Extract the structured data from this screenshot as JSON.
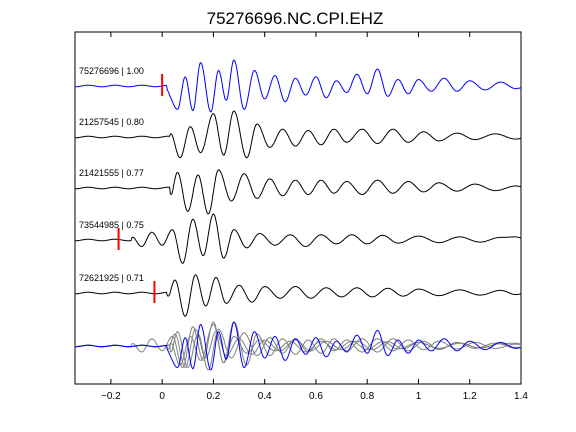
{
  "chart_data": {
    "type": "line",
    "title": "75276696.NC.CPI.EHZ",
    "xlabel": "",
    "ylabel": "",
    "xlim": [
      -0.34,
      1.4
    ],
    "x_ticks": [
      -0.2,
      0,
      0.2,
      0.4,
      0.6,
      0.8,
      1,
      1.2,
      1.4
    ],
    "x_tick_labels": [
      "−0.2",
      "0",
      "0.2",
      "0.4",
      "0.6",
      "0.8",
      "1",
      "1.2",
      "1.4"
    ],
    "grid": false,
    "colors": {
      "reference": "#0000ff",
      "trace": "#000000",
      "overlay": "#808080",
      "pick": "#ff0000"
    },
    "series": [
      {
        "label": "75276696 | 1.00",
        "event_id": "75276696",
        "correlation": 1.0,
        "color": "#0000ff",
        "pick_time": 0.0,
        "label_time": -0.34,
        "peaks": [
          [
            0.02,
            -0.3
          ],
          [
            0.06,
            -0.9
          ],
          [
            0.09,
            0.35
          ],
          [
            0.12,
            -0.95
          ],
          [
            0.15,
            0.9
          ],
          [
            0.19,
            -1.0
          ],
          [
            0.22,
            0.6
          ],
          [
            0.25,
            -0.55
          ],
          [
            0.28,
            1.0
          ],
          [
            0.32,
            -0.9
          ],
          [
            0.36,
            0.6
          ],
          [
            0.4,
            -0.5
          ],
          [
            0.44,
            0.4
          ],
          [
            0.48,
            -0.6
          ],
          [
            0.52,
            0.3
          ],
          [
            0.56,
            -0.35
          ],
          [
            0.6,
            0.35
          ],
          [
            0.64,
            -0.45
          ],
          [
            0.68,
            0.2
          ],
          [
            0.72,
            -0.25
          ],
          [
            0.76,
            0.45
          ],
          [
            0.8,
            -0.3
          ],
          [
            0.84,
            0.65
          ],
          [
            0.88,
            -0.4
          ],
          [
            0.92,
            0.25
          ],
          [
            0.96,
            -0.3
          ],
          [
            1.0,
            0.25
          ],
          [
            1.05,
            -0.2
          ],
          [
            1.1,
            0.3
          ],
          [
            1.15,
            -0.2
          ],
          [
            1.2,
            0.2
          ],
          [
            1.26,
            -0.15
          ],
          [
            1.32,
            0.15
          ],
          [
            1.38,
            -0.1
          ]
        ]
      },
      {
        "label": "21257545 | 0.80",
        "event_id": "21257545",
        "correlation": 0.8,
        "color": "#000000",
        "pick_time": null,
        "label_time": -0.34,
        "peaks": [
          [
            0.03,
            0.2
          ],
          [
            0.07,
            -0.8
          ],
          [
            0.11,
            0.4
          ],
          [
            0.15,
            -0.6
          ],
          [
            0.2,
            0.9
          ],
          [
            0.24,
            -0.7
          ],
          [
            0.28,
            1.0
          ],
          [
            0.33,
            -0.8
          ],
          [
            0.37,
            0.5
          ],
          [
            0.42,
            -0.4
          ],
          [
            0.47,
            0.3
          ],
          [
            0.52,
            -0.35
          ],
          [
            0.57,
            0.25
          ],
          [
            0.62,
            -0.3
          ],
          [
            0.67,
            0.3
          ],
          [
            0.72,
            -0.2
          ],
          [
            0.78,
            0.3
          ],
          [
            0.84,
            -0.25
          ],
          [
            0.9,
            0.3
          ],
          [
            0.96,
            -0.2
          ],
          [
            1.02,
            0.2
          ],
          [
            1.08,
            -0.15
          ],
          [
            1.15,
            0.15
          ],
          [
            1.22,
            -0.1
          ],
          [
            1.3,
            0.12
          ],
          [
            1.38,
            -0.08
          ]
        ]
      },
      {
        "label": "21421555 | 0.77",
        "event_id": "21421555",
        "correlation": 0.77,
        "color": "#000000",
        "pick_time": null,
        "label_time": -0.34,
        "peaks": [
          [
            0.03,
            -0.4
          ],
          [
            0.06,
            0.6
          ],
          [
            0.1,
            -0.9
          ],
          [
            0.14,
            0.5
          ],
          [
            0.18,
            -1.0
          ],
          [
            0.22,
            0.7
          ],
          [
            0.27,
            -0.5
          ],
          [
            0.32,
            0.55
          ],
          [
            0.37,
            -0.4
          ],
          [
            0.42,
            0.35
          ],
          [
            0.47,
            -0.3
          ],
          [
            0.52,
            0.3
          ],
          [
            0.57,
            -0.25
          ],
          [
            0.62,
            0.3
          ],
          [
            0.67,
            -0.2
          ],
          [
            0.72,
            0.25
          ],
          [
            0.78,
            -0.25
          ],
          [
            0.84,
            0.3
          ],
          [
            0.9,
            -0.2
          ],
          [
            0.96,
            0.25
          ],
          [
            1.02,
            -0.15
          ],
          [
            1.08,
            0.2
          ],
          [
            1.15,
            -0.12
          ],
          [
            1.22,
            0.15
          ],
          [
            1.3,
            -0.1
          ],
          [
            1.38,
            0.08
          ]
        ]
      },
      {
        "label": "73544985 | 0.75",
        "event_id": "73544985",
        "correlation": 0.75,
        "color": "#000000",
        "pick_time": -0.17,
        "label_time": -0.34,
        "peaks": [
          [
            -0.12,
            0.15
          ],
          [
            -0.08,
            -0.25
          ],
          [
            -0.04,
            0.3
          ],
          [
            0.0,
            -0.2
          ],
          [
            0.04,
            0.4
          ],
          [
            0.08,
            -0.9
          ],
          [
            0.12,
            0.8
          ],
          [
            0.16,
            -0.6
          ],
          [
            0.2,
            1.0
          ],
          [
            0.24,
            -0.7
          ],
          [
            0.28,
            0.4
          ],
          [
            0.33,
            -0.3
          ],
          [
            0.38,
            0.25
          ],
          [
            0.44,
            -0.2
          ],
          [
            0.5,
            0.2
          ],
          [
            0.56,
            -0.25
          ],
          [
            0.62,
            0.2
          ],
          [
            0.68,
            -0.15
          ],
          [
            0.74,
            0.2
          ],
          [
            0.8,
            -0.15
          ],
          [
            0.86,
            0.18
          ],
          [
            0.92,
            -0.12
          ],
          [
            1.0,
            0.15
          ],
          [
            1.08,
            -0.1
          ],
          [
            1.16,
            0.12
          ],
          [
            1.24,
            -0.08
          ],
          [
            1.32,
            0.1
          ],
          [
            1.38,
            0.12
          ]
        ]
      },
      {
        "label": "72621925 | 0.71",
        "event_id": "72621925",
        "correlation": 0.71,
        "color": "#000000",
        "pick_time": -0.03,
        "label_time": -0.34,
        "peaks": [
          [
            0.02,
            -0.2
          ],
          [
            0.05,
            0.5
          ],
          [
            0.09,
            -0.9
          ],
          [
            0.13,
            0.7
          ],
          [
            0.17,
            -0.5
          ],
          [
            0.21,
            0.6
          ],
          [
            0.25,
            -0.4
          ],
          [
            0.3,
            0.3
          ],
          [
            0.35,
            -0.35
          ],
          [
            0.4,
            0.25
          ],
          [
            0.46,
            -0.2
          ],
          [
            0.52,
            0.25
          ],
          [
            0.58,
            -0.2
          ],
          [
            0.64,
            0.2
          ],
          [
            0.7,
            -0.15
          ],
          [
            0.76,
            0.2
          ],
          [
            0.82,
            -0.15
          ],
          [
            0.88,
            0.18
          ],
          [
            0.94,
            -0.12
          ],
          [
            1.0,
            0.15
          ],
          [
            1.08,
            -0.1
          ],
          [
            1.16,
            0.12
          ],
          [
            1.24,
            -0.08
          ],
          [
            1.32,
            0.1
          ],
          [
            1.38,
            -0.06
          ]
        ]
      }
    ]
  }
}
